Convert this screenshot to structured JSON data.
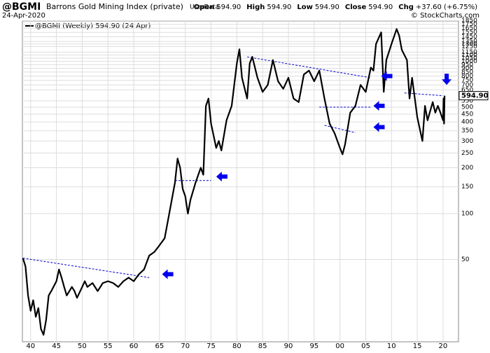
{
  "chart_data": {
    "type": "line",
    "symbol": "@BGMI",
    "name": "Barrons Gold Mining Index (private)",
    "source": "UserData",
    "date": "24-Apr-2020",
    "quote": [
      {
        "label": "Open",
        "value": "594.90"
      },
      {
        "label": "High",
        "value": "594.90"
      },
      {
        "label": "Low",
        "value": "594.90"
      },
      {
        "label": "Close",
        "value": "594.90"
      },
      {
        "label": "Chg",
        "value": "+37.60 (+6.75%)"
      }
    ],
    "credit": "© StockCharts.com",
    "legend_label": "@BGMI (Weekly) 594.90 (24 Apr)",
    "last_value_label": "594.90",
    "log_scale": true,
    "grid": true,
    "xlim": [
      1938.4,
      2023
    ],
    "ylim": [
      14.4,
      1840
    ],
    "xticks": [
      {
        "value": 1940,
        "label": "40"
      },
      {
        "value": 1945,
        "label": "45"
      },
      {
        "value": 1950,
        "label": "50"
      },
      {
        "value": 1955,
        "label": "55"
      },
      {
        "value": 1960,
        "label": "60"
      },
      {
        "value": 1965,
        "label": "65"
      },
      {
        "value": 1970,
        "label": "70"
      },
      {
        "value": 1975,
        "label": "75"
      },
      {
        "value": 1980,
        "label": "80"
      },
      {
        "value": 1985,
        "label": "85"
      },
      {
        "value": 1990,
        "label": "90"
      },
      {
        "value": 1995,
        "label": "95"
      },
      {
        "value": 2000,
        "label": "00"
      },
      {
        "value": 2005,
        "label": "05"
      },
      {
        "value": 2010,
        "label": "10"
      },
      {
        "value": 2015,
        "label": "15"
      },
      {
        "value": 2020,
        "label": "20"
      }
    ],
    "yticks": [
      50,
      100,
      150,
      200,
      250,
      300,
      350,
      400,
      450,
      500,
      550,
      650,
      700,
      750,
      800,
      850,
      900,
      950,
      1000,
      1050,
      1100,
      1150,
      1250,
      1300,
      1350,
      1450,
      1550,
      1650,
      1750,
      1850
    ],
    "x": [
      1938.5,
      1939,
      1939.5,
      1940,
      1940.5,
      1941,
      1941.5,
      1942,
      1942.5,
      1943,
      1943.5,
      1944,
      1945,
      1945.5,
      1946,
      1946.5,
      1947,
      1948,
      1948.5,
      1949,
      1950,
      1950.5,
      1951,
      1952,
      1953,
      1954,
      1955,
      1956,
      1957,
      1958,
      1959,
      1960,
      1961,
      1962,
      1963,
      1964,
      1965,
      1966,
      1967,
      1968,
      1968.5,
      1969,
      1969.5,
      1970,
      1970.5,
      1971,
      1972,
      1973,
      1973.5,
      1974,
      1974.5,
      1975,
      1976,
      1976.5,
      1977,
      1978,
      1979,
      1980,
      1980.5,
      1981,
      1982,
      1982.5,
      1983,
      1984,
      1985,
      1986,
      1987,
      1988,
      1989,
      1990,
      1991,
      1992,
      1993,
      1994,
      1995,
      1996,
      1997,
      1998,
      1999,
      2000,
      2000.5,
      2001,
      2002,
      2003,
      2004,
      2005,
      2006,
      2006.5,
      2007,
      2008,
      2008.5,
      2009,
      2010,
      2011,
      2011.5,
      2012,
      2013,
      2013.5,
      2014,
      2015,
      2016,
      2016.5,
      2017,
      2018,
      2018.5,
      2019,
      2019.5,
      2020,
      2020.1,
      2020.2,
      2020.3
    ],
    "series": [
      {
        "name": "@BGMI",
        "color": "#000000",
        "values": [
          51,
          45,
          29,
          23,
          27,
          21,
          24,
          17.5,
          16,
          20,
          29,
          31,
          36,
          43,
          38,
          33,
          29,
          33,
          31,
          28,
          33,
          36,
          33,
          35,
          31,
          35,
          36,
          35,
          33,
          36,
          38,
          36,
          40,
          43,
          53,
          56,
          62,
          69,
          105,
          160,
          230,
          200,
          145,
          130,
          100,
          123,
          160,
          200,
          180,
          510,
          570,
          390,
          270,
          300,
          260,
          410,
          510,
          970,
          1200,
          780,
          570,
          970,
          1070,
          780,
          630,
          700,
          1020,
          740,
          660,
          780,
          570,
          540,
          820,
          870,
          740,
          870,
          570,
          390,
          335,
          270,
          245,
          285,
          460,
          510,
          700,
          630,
          910,
          870,
          1300,
          1550,
          630,
          1020,
          1300,
          1630,
          1470,
          1190,
          1020,
          570,
          780,
          430,
          300,
          510,
          410,
          540,
          460,
          510,
          460,
          410,
          570,
          390,
          594.9
        ]
      }
    ],
    "trendlines": [
      {
        "x": [
          1938.5,
          1963
        ],
        "y": [
          51,
          38
        ]
      },
      {
        "x": [
          1968,
          1975
        ],
        "y": [
          165,
          165
        ]
      },
      {
        "x": [
          1982,
          2006
        ],
        "y": [
          1070,
          780
        ]
      },
      {
        "x": [
          1996,
          2006
        ],
        "y": [
          500,
          500
        ]
      },
      {
        "x": [
          1997,
          2003
        ],
        "y": [
          380,
          340
        ]
      },
      {
        "x": [
          2012.5,
          2020
        ],
        "y": [
          620,
          594.9
        ]
      }
    ],
    "trendline_color": "#0000cc",
    "arrow_color": "#0000ee",
    "arrows": [
      {
        "x": 1965.5,
        "y": 40,
        "dir": "left"
      },
      {
        "x": 1976,
        "y": 175,
        "dir": "left"
      },
      {
        "x": 2008,
        "y": 800,
        "dir": "left"
      },
      {
        "x": 2006.5,
        "y": 510,
        "dir": "left"
      },
      {
        "x": 2006.5,
        "y": 370,
        "dir": "left"
      },
      {
        "x": 2020.7,
        "y": 700,
        "dir": "down"
      }
    ]
  }
}
